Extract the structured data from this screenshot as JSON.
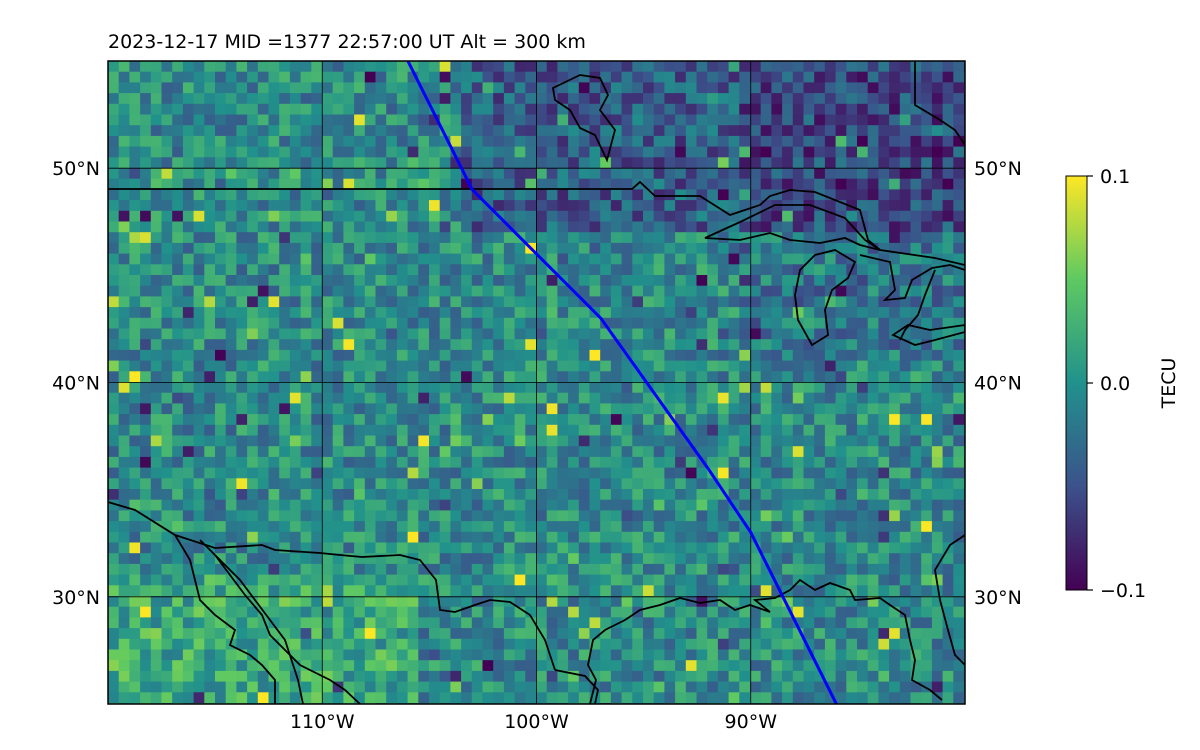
{
  "chart_data": {
    "type": "heatmap",
    "title": "2023-12-17  MID =1377    22:57:00  UT  Alt = 300 km",
    "x_range": [
      -120,
      -80
    ],
    "y_range": [
      25,
      55
    ],
    "x_ticks": [
      {
        "value": -110,
        "label": "110°W"
      },
      {
        "value": -100,
        "label": "100°W"
      },
      {
        "value": -90,
        "label": "90°W"
      }
    ],
    "y_ticks": [
      {
        "value": 30,
        "label": "30°N"
      },
      {
        "value": 40,
        "label": "40°N"
      },
      {
        "value": 50,
        "label": "50°N"
      }
    ],
    "grid": true,
    "colorbar": {
      "label": "TECU",
      "min": -0.1,
      "max": 0.1,
      "ticks": [
        {
          "value": 0.1,
          "label": "0.1"
        },
        {
          "value": 0.0,
          "label": "0.0"
        },
        {
          "value": -0.1,
          "label": "−0.1"
        }
      ],
      "colormap": "viridis"
    },
    "track": {
      "color": "#0000ff",
      "lon": [
        -106,
        -103,
        -100,
        -97,
        -94.5,
        -92,
        -90,
        -88.5,
        -86
      ],
      "lat": [
        55,
        49,
        46,
        43,
        39.5,
        36,
        33,
        30,
        25
      ]
    }
  }
}
